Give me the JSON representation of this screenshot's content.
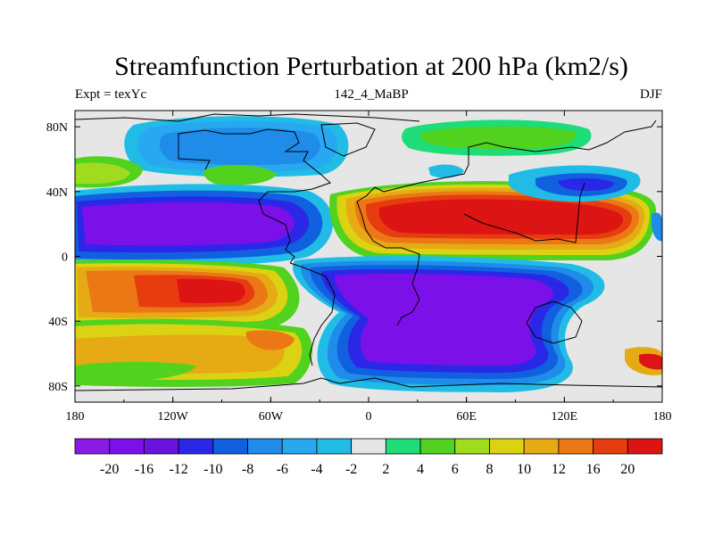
{
  "header": {
    "title": "Streamfunction Perturbation at 200 hPa (km2/s)",
    "left": "Expt = texYc",
    "center": "142_4_MaBP",
    "right": "DJF"
  },
  "axes": {
    "lon_ticks": [
      "180",
      "120W",
      "60W",
      "0",
      "60E",
      "120E",
      "180"
    ],
    "lat_ticks": [
      "80N",
      "40N",
      "0",
      "40S",
      "80S"
    ]
  },
  "colorbar": {
    "labels": [
      "-20",
      "-16",
      "-12",
      "-10",
      "-8",
      "-6",
      "-4",
      "-2",
      "2",
      "4",
      "6",
      "8",
      "10",
      "12",
      "16",
      "20"
    ],
    "colors": [
      "#8c1ae6",
      "#7c10e8",
      "#6a12e0",
      "#2a28e6",
      "#1060e0",
      "#1e8ce8",
      "#28a8f0",
      "#20bce6",
      "#e6e6e6",
      "#1edc78",
      "#50d21e",
      "#a0dc1e",
      "#dcd214",
      "#e6aa14",
      "#eb7814",
      "#e63c10",
      "#dc1414"
    ]
  },
  "colors": {
    "coastline": "#000000",
    "background": "#ffffff"
  }
}
